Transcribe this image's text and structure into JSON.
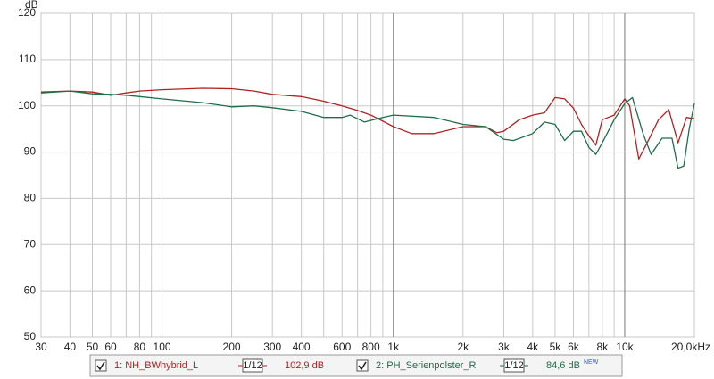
{
  "chart_data": {
    "type": "line",
    "y_label": "dB",
    "xscale": "log",
    "grid": true,
    "xlim": [
      30,
      20000
    ],
    "ylim": [
      50,
      120
    ],
    "yticks": [
      50,
      60,
      70,
      80,
      90,
      100,
      110,
      120
    ],
    "xticks": [
      30,
      40,
      50,
      60,
      80,
      100,
      200,
      300,
      400,
      600,
      800,
      {
        "value": 1000,
        "label": "1k"
      },
      {
        "value": 2000,
        "label": "2k"
      },
      {
        "value": 3000,
        "label": "3k"
      },
      {
        "value": 4000,
        "label": "4k"
      },
      {
        "value": 5000,
        "label": "5k"
      },
      {
        "value": 6000,
        "label": "6k"
      },
      {
        "value": 8000,
        "label": "8k"
      },
      {
        "value": 10000,
        "label": "10k"
      },
      {
        "value": 20000,
        "label": "20,0kHz"
      }
    ],
    "xminor_ticks": [
      70,
      90,
      500,
      700,
      900,
      7000,
      9000
    ],
    "series": [
      {
        "name": "1: NH_BWhybrid_L",
        "color": "#b22222",
        "smoothing": "1/12",
        "level_label": "102,9 dB",
        "x": [
          30,
          40,
          50,
          60,
          70,
          80,
          100,
          150,
          200,
          250,
          300,
          400,
          500,
          600,
          700,
          800,
          1000,
          1200,
          1500,
          2000,
          2500,
          2800,
          3000,
          3500,
          4000,
          4500,
          5000,
          5500,
          6000,
          6500,
          7000,
          7500,
          8000,
          9000,
          10000,
          10500,
          11500,
          12500,
          14000,
          15500,
          17000,
          18500,
          20000
        ],
        "values": [
          103,
          103.2,
          103,
          102.3,
          102.8,
          103.2,
          103.5,
          103.8,
          103.7,
          103.2,
          102.5,
          102,
          101,
          100,
          99,
          98,
          95.5,
          94,
          94,
          95.5,
          95.5,
          94.2,
          94.5,
          97,
          98,
          98.5,
          101.8,
          101.5,
          99.5,
          96,
          93.5,
          91.5,
          97,
          98,
          101.5,
          100,
          88.5,
          92,
          97,
          99.2,
          92,
          97.5,
          97.2
        ]
      },
      {
        "name": "2: PH_Serienpolster_R",
        "color": "#1e6e4a",
        "smoothing": "1/12",
        "level_label": "84,6 dB",
        "badge": "NEW",
        "x": [
          30,
          40,
          50,
          60,
          70,
          80,
          100,
          150,
          200,
          250,
          300,
          400,
          500,
          600,
          650,
          750,
          900,
          1000,
          1500,
          2000,
          2500,
          3000,
          3300,
          4000,
          4500,
          5000,
          5500,
          6000,
          6500,
          7000,
          7500,
          8000,
          9000,
          10000,
          10800,
          12000,
          13000,
          14500,
          16000,
          17000,
          18000,
          19000,
          20000
        ],
        "values": [
          102.8,
          103.2,
          102.6,
          102.5,
          102.3,
          102,
          101.5,
          100.7,
          99.8,
          100,
          99.6,
          98.8,
          97.5,
          97.5,
          98,
          96.5,
          97.5,
          98,
          97.5,
          96,
          95.5,
          92.8,
          92.5,
          94,
          96.5,
          96,
          92.5,
          94.5,
          94.5,
          91,
          89.5,
          92,
          97,
          100.5,
          101.8,
          94,
          89.5,
          93,
          93,
          86.5,
          87,
          95,
          100.5
        ]
      }
    ]
  }
}
